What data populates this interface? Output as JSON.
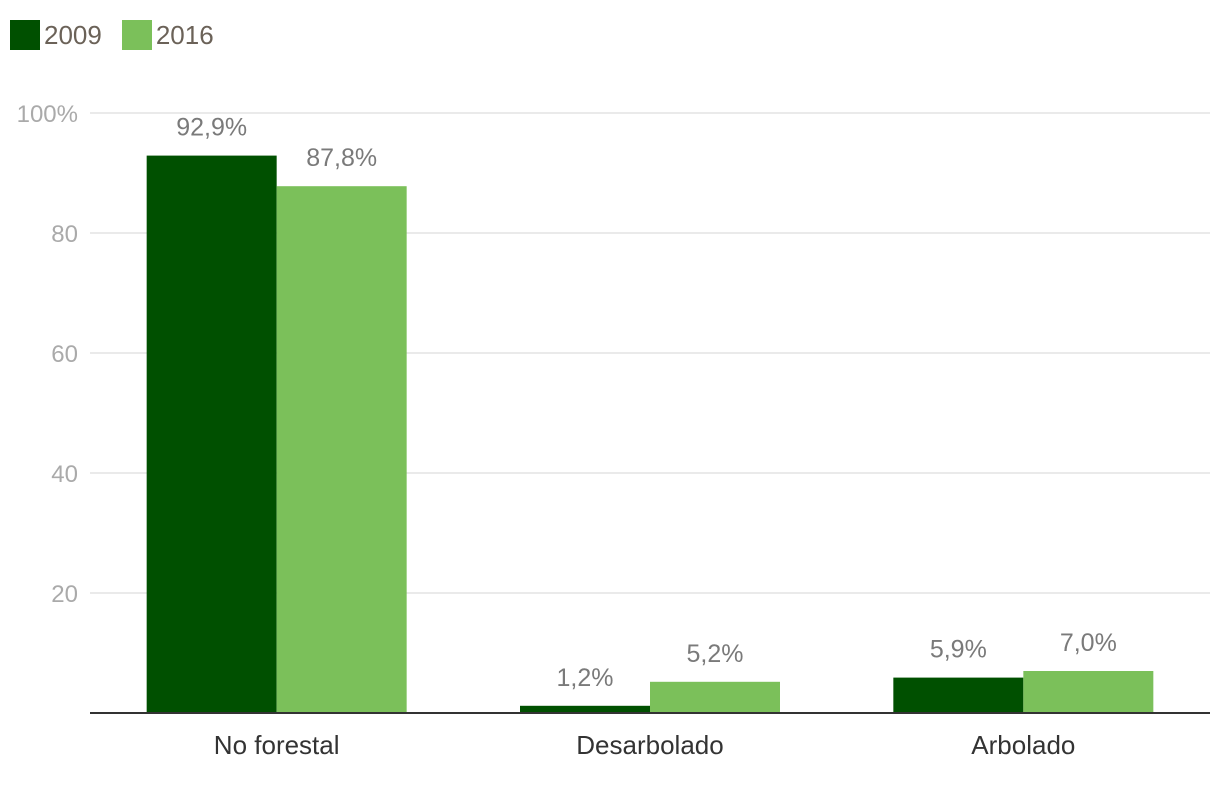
{
  "colors": {
    "series_2009": "#005000",
    "series_2016": "#7bc05a",
    "grid": "#e4e4e4",
    "axis": "#333333"
  },
  "chart_data": {
    "type": "bar",
    "categories": [
      "No forestal",
      "Desarbolado",
      "Arbolado"
    ],
    "series": [
      {
        "name": "2009",
        "values": [
          92.9,
          1.2,
          5.9
        ],
        "labels": [
          "92,9%",
          "1,2%",
          "5,9%"
        ]
      },
      {
        "name": "2016",
        "values": [
          87.8,
          5.2,
          7.0
        ],
        "labels": [
          "87,8%",
          "5,2%",
          "7,0%"
        ]
      }
    ],
    "yticks": [
      20,
      40,
      60,
      80,
      100
    ],
    "ytick_labels": [
      "20",
      "40",
      "60",
      "80",
      "100%"
    ],
    "ylim": [
      0,
      100
    ],
    "grid": true,
    "legend": "top-left"
  }
}
